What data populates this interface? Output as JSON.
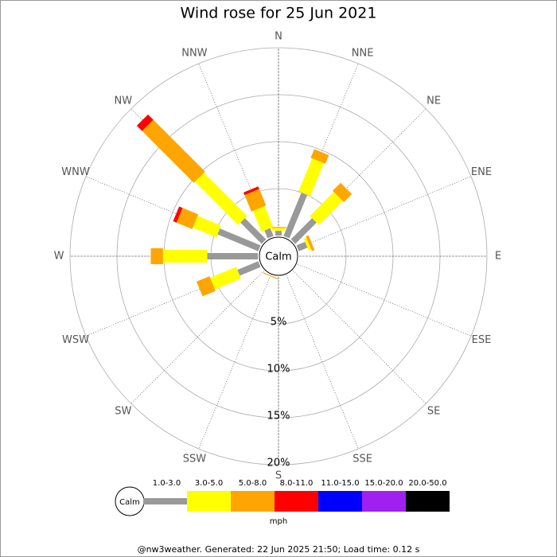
{
  "chart_data": {
    "type": "windrose",
    "title": "Wind rose for 25 Jun 2021",
    "directions": [
      "N",
      "NNE",
      "NE",
      "ENE",
      "E",
      "ESE",
      "SE",
      "SSE",
      "S",
      "SSW",
      "SW",
      "WSW",
      "W",
      "WNW",
      "NW",
      "NNW"
    ],
    "calm_label": "Calm",
    "unit": "mph",
    "rlim": [
      0,
      20
    ],
    "rticks": [
      {
        "value": 5,
        "label": "5%"
      },
      {
        "value": 10,
        "label": "10%"
      },
      {
        "value": 15,
        "label": "15%"
      },
      {
        "value": 20,
        "label": "20%"
      }
    ],
    "series": [
      {
        "name": "1.0-3.0",
        "color": "#999999",
        "values": [
          0.5,
          5.0,
          3.2,
          1.0,
          0,
          0,
          0,
          0,
          0,
          0,
          0,
          2.4,
          5.4,
          4.7,
          3.2,
          0.9
        ]
      },
      {
        "name": "3.0-5.0",
        "color": "#ffff00",
        "values": [
          0.3,
          3.8,
          3.6,
          0.3,
          0,
          0,
          0,
          0,
          0,
          0,
          0,
          3.0,
          4.7,
          2.7,
          6.5,
          2.4
        ]
      },
      {
        "name": "5.0-8.0",
        "color": "#ffa500",
        "values": [
          0.1,
          1.0,
          1.2,
          0.3,
          0,
          0,
          0,
          0,
          0,
          0.1,
          0,
          1.5,
          1.3,
          1.8,
          7.8,
          1.9
        ]
      },
      {
        "name": "8.0-11.0",
        "color": "#ff0000",
        "values": [
          0,
          0,
          0,
          0,
          0,
          0,
          0,
          0,
          0,
          0,
          0,
          0,
          0,
          0.4,
          0.8,
          0.3
        ]
      },
      {
        "name": "11.0-15.0",
        "color": "#0000ff",
        "values": [
          0,
          0,
          0,
          0,
          0,
          0,
          0,
          0,
          0,
          0,
          0,
          0,
          0,
          0,
          0,
          0
        ]
      },
      {
        "name": "15.0-20.0",
        "color": "#a020f0",
        "values": [
          0,
          0,
          0,
          0,
          0,
          0,
          0,
          0,
          0,
          0,
          0,
          0,
          0,
          0,
          0,
          0
        ]
      },
      {
        "name": "20.0-50.0",
        "color": "#000000",
        "values": [
          0,
          0,
          0,
          0,
          0,
          0,
          0,
          0,
          0,
          0,
          0,
          0,
          0,
          0,
          0,
          0
        ]
      }
    ],
    "footer": "@nw3weather. Generated: 22 Jun 2025 21:50; Load time: 0.12 s"
  }
}
